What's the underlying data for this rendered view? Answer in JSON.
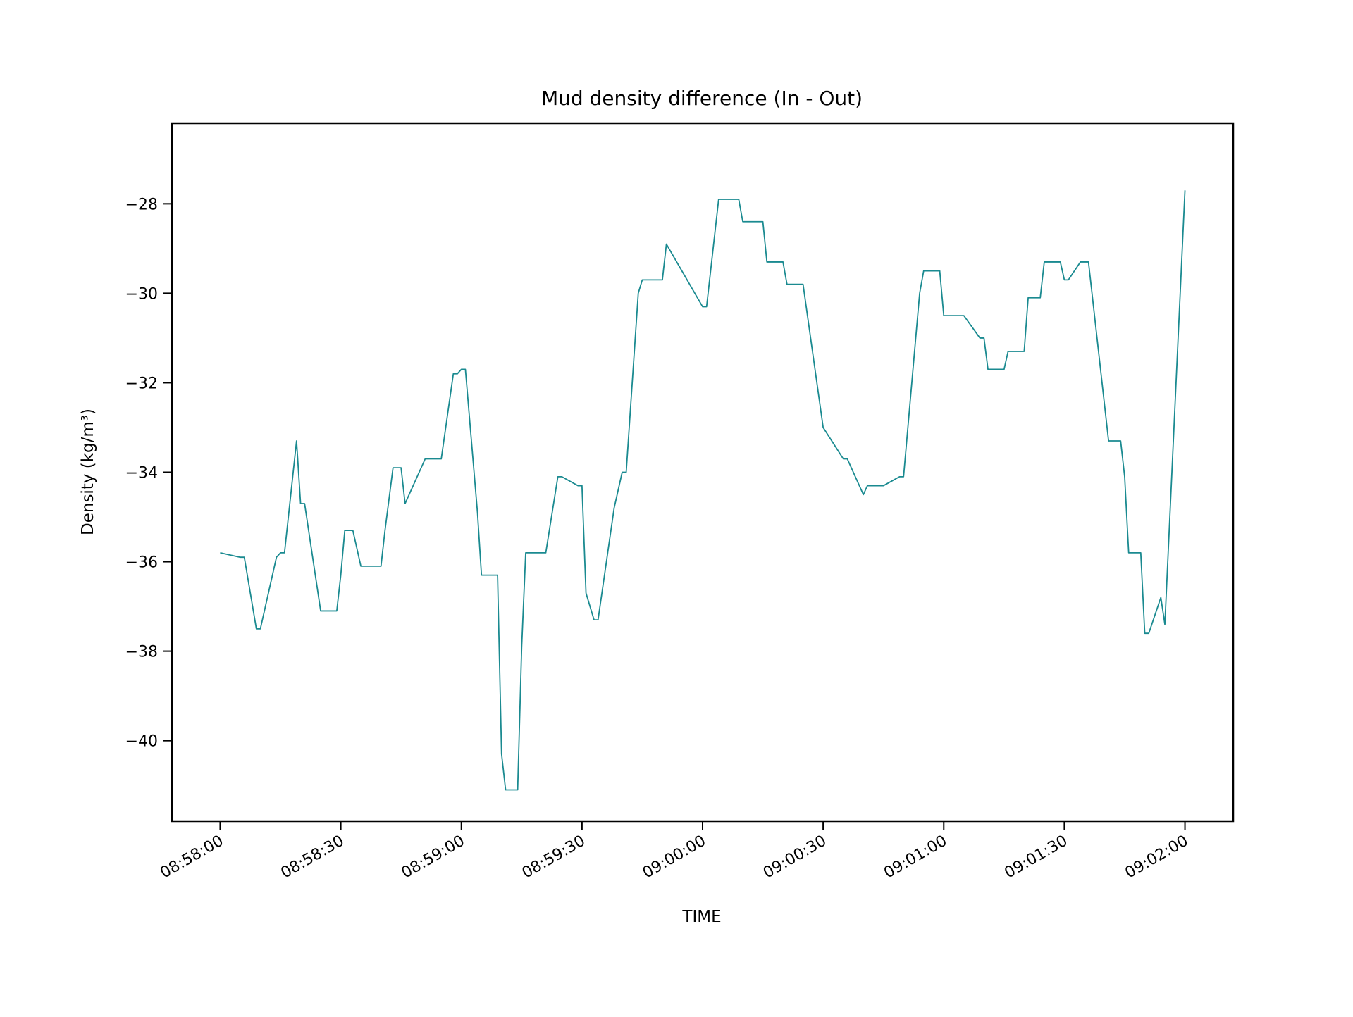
{
  "chart_data": {
    "type": "line",
    "title": "Mud density difference (In - Out)",
    "xlabel": "TIME",
    "ylabel": "Density (kg/m³)",
    "grid": false,
    "x_axis": {
      "type": "time",
      "range": [
        "08:57:48",
        "09:02:12"
      ],
      "ticks": [
        "08:58:00",
        "08:58:30",
        "08:59:00",
        "08:59:30",
        "09:00:00",
        "09:00:30",
        "09:01:00",
        "09:01:30",
        "09:02:00"
      ]
    },
    "y_axis": {
      "range": [
        -41.8,
        -26.2
      ],
      "ticks": [
        -40,
        -38,
        -36,
        -34,
        -32,
        -30,
        -28
      ],
      "tick_labels": [
        "−40",
        "−38",
        "−36",
        "−34",
        "−32",
        "−30",
        "−28"
      ]
    },
    "series": [
      {
        "color": "#1a8a90",
        "x": [
          "08:58:00",
          "08:58:05",
          "08:58:06",
          "08:58:09",
          "08:58:10",
          "08:58:14",
          "08:58:15",
          "08:58:16",
          "08:58:19",
          "08:58:20",
          "08:58:21",
          "08:58:25",
          "08:58:26",
          "08:58:29",
          "08:58:30",
          "08:58:31",
          "08:58:33",
          "08:58:35",
          "08:58:40",
          "08:58:41",
          "08:58:43",
          "08:58:45",
          "08:58:46",
          "08:58:51",
          "08:58:55",
          "08:58:58",
          "08:58:59",
          "08:59:00",
          "08:59:01",
          "08:59:04",
          "08:59:05",
          "08:59:06",
          "08:59:09",
          "08:59:10",
          "08:59:11",
          "08:59:14",
          "08:59:15",
          "08:59:16",
          "08:59:21",
          "08:59:24",
          "08:59:25",
          "08:59:29",
          "08:59:30",
          "08:59:31",
          "08:59:33",
          "08:59:34",
          "08:59:38",
          "08:59:40",
          "08:59:41",
          "08:59:44",
          "08:59:45",
          "08:59:50",
          "08:59:51",
          "09:00:00",
          "09:00:01",
          "09:00:04",
          "09:00:05",
          "09:00:06",
          "09:00:09",
          "09:00:10",
          "09:00:15",
          "09:00:16",
          "09:00:20",
          "09:00:21",
          "09:00:25",
          "09:00:30",
          "09:00:35",
          "09:00:36",
          "09:00:40",
          "09:00:41",
          "09:00:45",
          "09:00:49",
          "09:00:50",
          "09:00:54",
          "09:00:55",
          "09:00:59",
          "09:01:00",
          "09:01:04",
          "09:01:05",
          "09:01:09",
          "09:01:10",
          "09:01:11",
          "09:01:15",
          "09:01:16",
          "09:01:20",
          "09:01:21",
          "09:01:24",
          "09:01:25",
          "09:01:26",
          "09:01:29",
          "09:01:30",
          "09:01:31",
          "09:01:34",
          "09:01:35",
          "09:01:36",
          "09:01:40",
          "09:01:41",
          "09:01:44",
          "09:01:45",
          "09:01:46",
          "09:01:49",
          "09:01:50",
          "09:01:51",
          "09:01:54",
          "09:01:55",
          "09:02:00"
        ],
        "y": [
          -35.8,
          -35.9,
          -35.9,
          -37.5,
          -37.5,
          -35.9,
          -35.8,
          -35.8,
          -33.3,
          -34.7,
          -34.7,
          -37.1,
          -37.1,
          -37.1,
          -36.3,
          -35.3,
          -35.3,
          -36.1,
          -36.1,
          -35.3,
          -33.9,
          -33.9,
          -34.7,
          -33.7,
          -33.7,
          -31.8,
          -31.8,
          -31.7,
          -31.7,
          -34.9,
          -36.3,
          -36.3,
          -36.3,
          -40.3,
          -41.1,
          -41.1,
          -37.9,
          -35.8,
          -35.8,
          -34.1,
          -34.1,
          -34.3,
          -34.3,
          -36.7,
          -37.3,
          -37.3,
          -34.8,
          -34.0,
          -34.0,
          -30.0,
          -29.7,
          -29.7,
          -28.9,
          -30.3,
          -30.3,
          -27.9,
          -27.9,
          -27.9,
          -27.9,
          -28.4,
          -28.4,
          -29.3,
          -29.3,
          -29.8,
          -29.8,
          -33.0,
          -33.7,
          -33.7,
          -34.5,
          -34.3,
          -34.3,
          -34.1,
          -34.1,
          -30.0,
          -29.5,
          -29.5,
          -30.5,
          -30.5,
          -30.5,
          -31.0,
          -31.0,
          -31.7,
          -31.7,
          -31.3,
          -31.3,
          -30.1,
          -30.1,
          -29.3,
          -29.3,
          -29.3,
          -29.7,
          -29.7,
          -29.3,
          -29.3,
          -29.3,
          -32.5,
          -33.3,
          -33.3,
          -34.1,
          -35.8,
          -35.8,
          -37.6,
          -37.6,
          -36.8,
          -37.4,
          -27.7
        ]
      }
    ]
  }
}
